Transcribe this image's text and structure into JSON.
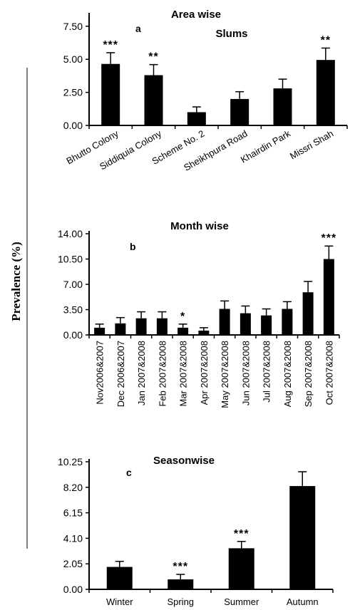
{
  "figure": {
    "ylabel": "Prevalence (%)"
  },
  "chart_data": [
    {
      "type": "bar",
      "title": "Area wise",
      "subtitle": "Slums",
      "panel_label": "a",
      "categories": [
        "Bhutto Colony",
        "Siddiquia Colony",
        "Scheme No. 2",
        "Sheikhpura Road",
        "Khairdin Park",
        "Missri Shah"
      ],
      "values": [
        4.65,
        3.8,
        1.0,
        2.0,
        2.8,
        4.95
      ],
      "errors": [
        0.85,
        0.8,
        0.4,
        0.55,
        0.7,
        0.9
      ],
      "significance": [
        "***",
        "**",
        "",
        "",
        "",
        "**"
      ],
      "yticks": [
        "0.00",
        "2.50",
        "5.00",
        "7.50"
      ],
      "ylim": [
        0,
        8.3
      ],
      "xlabel": "",
      "ylabel": "Prevalence (%)",
      "bar_color": "#000000"
    },
    {
      "type": "bar",
      "title": "Month wise",
      "panel_label": "b",
      "categories": [
        "Nov2006&2007",
        "Dec 2006&2007",
        "Jan 2007&2008",
        "Feb 2007&2008",
        "Mar 2007&2008",
        "Apr 2007&2008",
        "May 2007&2008",
        "Jun 2007&2008",
        "Jul 2007&2008",
        "Aug 2007&2008",
        "Sep 2007&2008",
        "Oct 2007&2008"
      ],
      "values": [
        1.0,
        1.6,
        2.3,
        2.3,
        1.0,
        0.6,
        3.6,
        3.0,
        2.7,
        3.6,
        5.9,
        10.5
      ],
      "errors": [
        0.5,
        0.8,
        0.9,
        0.9,
        0.5,
        0.4,
        1.1,
        1.0,
        0.9,
        1.0,
        1.5,
        1.8
      ],
      "significance": [
        "",
        "",
        "",
        "",
        "*",
        "",
        "",
        "",
        "",
        "",
        "",
        "***"
      ],
      "yticks": [
        "0.00",
        "3.50",
        "7.00",
        "10.50",
        "14.00"
      ],
      "ylim": [
        0,
        14.0
      ],
      "xlabel": "",
      "ylabel": "Prevalence (%)",
      "bar_color": "#000000"
    },
    {
      "type": "bar",
      "title": "Seasonwise",
      "panel_label": "c",
      "categories": [
        "Winter",
        "Spring",
        "Summer",
        "Autumn"
      ],
      "values": [
        1.8,
        0.8,
        3.3,
        8.3
      ],
      "errors": [
        0.45,
        0.4,
        0.55,
        1.15
      ],
      "significance": [
        "",
        "***",
        "***",
        ""
      ],
      "yticks": [
        "0.00",
        "2.05",
        "4.10",
        "6.15",
        "8.20",
        "10.25"
      ],
      "ylim": [
        0,
        10.25
      ],
      "xlabel": "",
      "ylabel": "Prevalence (%)",
      "bar_color": "#000000"
    }
  ]
}
